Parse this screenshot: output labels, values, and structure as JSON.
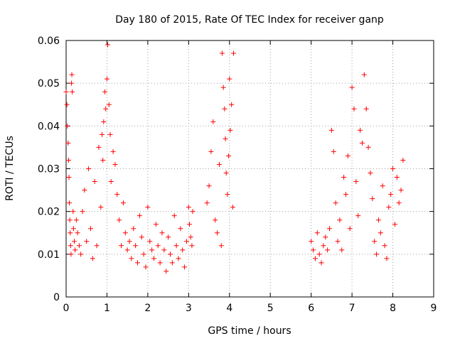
{
  "chart_data": {
    "type": "scatter",
    "title": "Day 180 of 2015, Rate Of TEC Index for receiver ganp",
    "xlabel": "GPS time / hours",
    "ylabel": "ROTI / TECUs",
    "xlim": [
      0,
      9
    ],
    "ylim": [
      0,
      0.06
    ],
    "x_ticks": [
      0,
      1,
      2,
      3,
      4,
      5,
      6,
      7,
      8,
      9
    ],
    "x_tick_labels": [
      "0",
      "1",
      "2",
      "3",
      "4",
      "5",
      "6",
      "7",
      "8",
      "9"
    ],
    "y_ticks": [
      0,
      0.01,
      0.02,
      0.03,
      0.04,
      0.05,
      0.06
    ],
    "y_tick_labels": [
      "0",
      "0.01",
      "0.02",
      "0.03",
      "0.04",
      "0.05",
      "0.06"
    ],
    "grid": true,
    "marker": "+",
    "marker_color": "#ff0000",
    "series": [
      {
        "name": "ROTI",
        "x": [
          0.0,
          0.02,
          0.03,
          0.05,
          0.06,
          0.07,
          0.08,
          0.09,
          0.1,
          0.11,
          0.12,
          0.13,
          0.14,
          0.15,
          0.17,
          0.18,
          0.2,
          0.22,
          0.25,
          0.28,
          0.32,
          0.36,
          0.4,
          0.45,
          0.5,
          0.55,
          0.6,
          0.65,
          0.7,
          0.75,
          0.8,
          0.85,
          0.88,
          0.9,
          0.92,
          0.95,
          0.97,
          1.0,
          1.02,
          1.05,
          1.08,
          1.1,
          1.15,
          1.2,
          1.25,
          1.3,
          1.35,
          1.4,
          1.45,
          1.5,
          1.55,
          1.6,
          1.65,
          1.7,
          1.75,
          1.8,
          1.85,
          1.9,
          1.95,
          2.0,
          2.05,
          2.1,
          2.15,
          2.2,
          2.25,
          2.3,
          2.35,
          2.4,
          2.45,
          2.5,
          2.55,
          2.6,
          2.65,
          2.7,
          2.75,
          2.8,
          2.85,
          2.9,
          2.95,
          3.0,
          3.02,
          3.05,
          3.08,
          3.1,
          3.45,
          3.5,
          3.55,
          3.6,
          3.65,
          3.7,
          3.75,
          3.8,
          3.82,
          3.85,
          3.88,
          3.9,
          3.92,
          3.95,
          3.98,
          4.0,
          4.02,
          4.05,
          4.08,
          4.1,
          6.0,
          6.05,
          6.1,
          6.15,
          6.2,
          6.25,
          6.3,
          6.35,
          6.4,
          6.45,
          6.5,
          6.55,
          6.6,
          6.65,
          6.7,
          6.75,
          6.8,
          6.85,
          6.9,
          6.95,
          7.0,
          7.05,
          7.1,
          7.15,
          7.2,
          7.25,
          7.3,
          7.35,
          7.4,
          7.45,
          7.5,
          7.55,
          7.6,
          7.65,
          7.7,
          7.75,
          7.8,
          7.85,
          7.9,
          7.95,
          8.0,
          8.05,
          8.1,
          8.15,
          8.2,
          8.25
        ],
        "y": [
          0.048,
          0.045,
          0.04,
          0.036,
          0.032,
          0.028,
          0.022,
          0.018,
          0.015,
          0.012,
          0.01,
          0.05,
          0.052,
          0.048,
          0.02,
          0.016,
          0.013,
          0.011,
          0.018,
          0.015,
          0.012,
          0.01,
          0.02,
          0.025,
          0.013,
          0.03,
          0.016,
          0.009,
          0.027,
          0.012,
          0.035,
          0.021,
          0.038,
          0.032,
          0.041,
          0.048,
          0.044,
          0.051,
          0.059,
          0.045,
          0.038,
          0.027,
          0.034,
          0.031,
          0.024,
          0.018,
          0.012,
          0.022,
          0.015,
          0.011,
          0.013,
          0.009,
          0.016,
          0.012,
          0.008,
          0.019,
          0.014,
          0.01,
          0.007,
          0.021,
          0.013,
          0.011,
          0.009,
          0.017,
          0.012,
          0.008,
          0.015,
          0.011,
          0.006,
          0.014,
          0.01,
          0.008,
          0.019,
          0.012,
          0.009,
          0.016,
          0.011,
          0.007,
          0.013,
          0.021,
          0.017,
          0.014,
          0.012,
          0.02,
          0.022,
          0.026,
          0.034,
          0.041,
          0.018,
          0.015,
          0.031,
          0.012,
          0.057,
          0.049,
          0.044,
          0.037,
          0.029,
          0.024,
          0.033,
          0.051,
          0.039,
          0.045,
          0.021,
          0.057,
          0.013,
          0.011,
          0.009,
          0.015,
          0.01,
          0.008,
          0.012,
          0.014,
          0.011,
          0.016,
          0.039,
          0.034,
          0.022,
          0.013,
          0.018,
          0.011,
          0.028,
          0.024,
          0.033,
          0.016,
          0.049,
          0.044,
          0.027,
          0.019,
          0.039,
          0.036,
          0.052,
          0.044,
          0.035,
          0.029,
          0.023,
          0.013,
          0.01,
          0.018,
          0.015,
          0.026,
          0.012,
          0.009,
          0.021,
          0.024,
          0.03,
          0.017,
          0.028,
          0.022,
          0.025,
          0.032
        ]
      }
    ]
  }
}
